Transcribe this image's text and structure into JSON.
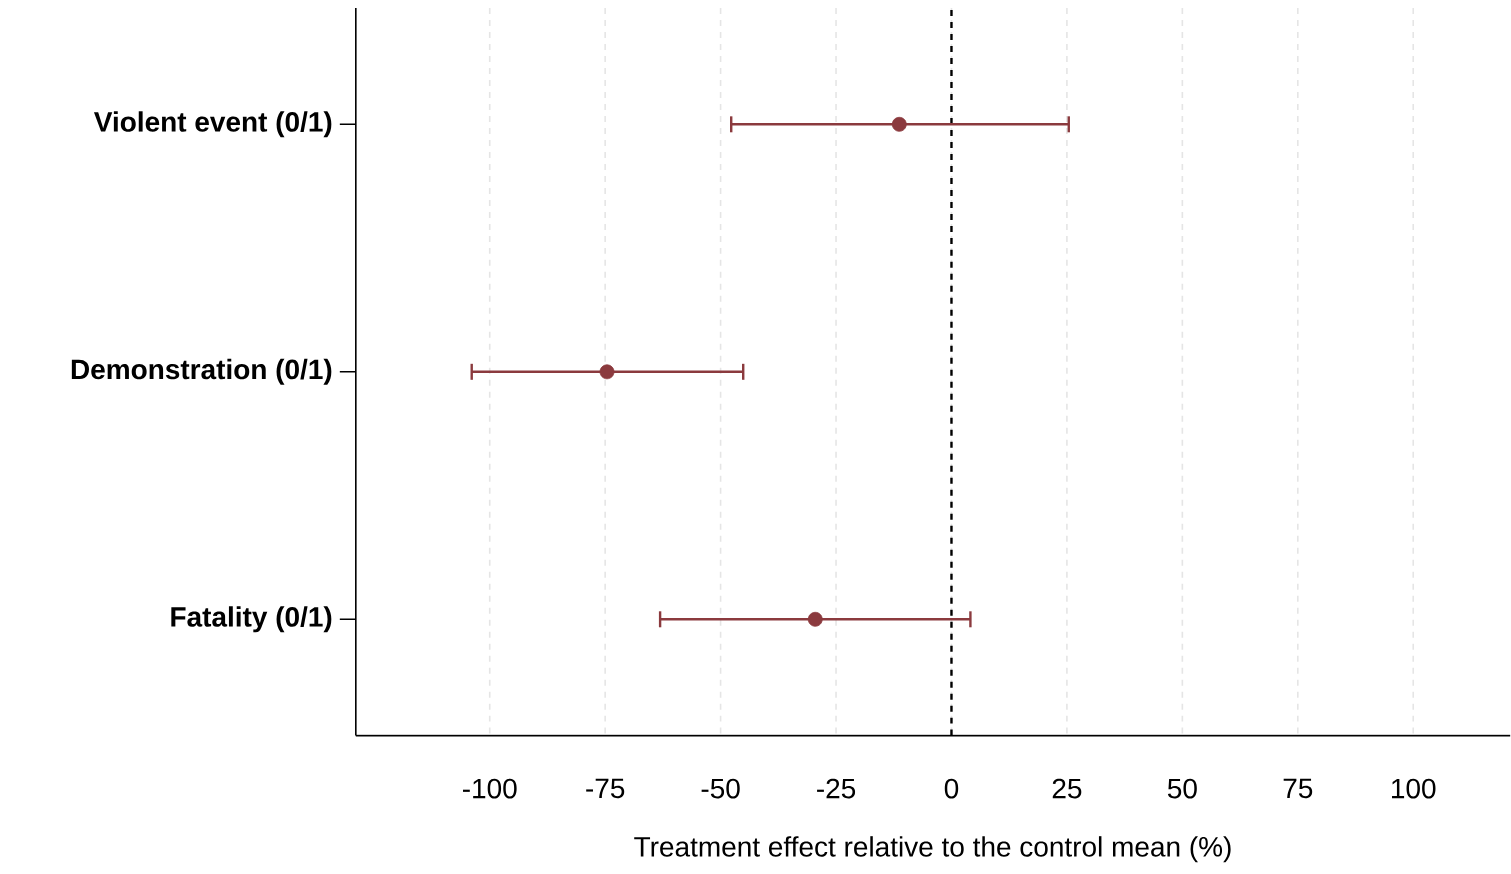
{
  "chart_data": {
    "type": "scatter",
    "orientation": "horizontal",
    "categories": [
      "Violent event (0/1)",
      "Demonstration (0/1)",
      "Fatality (0/1)"
    ],
    "series": [
      {
        "color": "#8b3a3e",
        "values": [
          -11.3,
          -74.6,
          -29.5
        ],
        "errors": [
          [
            -47.7,
            25.4
          ],
          [
            -103.9,
            -45.1
          ],
          [
            -63.1,
            4.1
          ]
        ]
      }
    ],
    "xlabel": "Treatment effect relative to the control mean (%)",
    "xlim": [
      -129,
      121
    ],
    "xticks": [
      -100,
      -75,
      -50,
      -25,
      0,
      25,
      50,
      75,
      100
    ],
    "grid": "x",
    "marker": "circle",
    "ref_lines": [
      {
        "axis": "x",
        "value": 0,
        "color": "#000000",
        "line_style": "dashed"
      }
    ]
  }
}
